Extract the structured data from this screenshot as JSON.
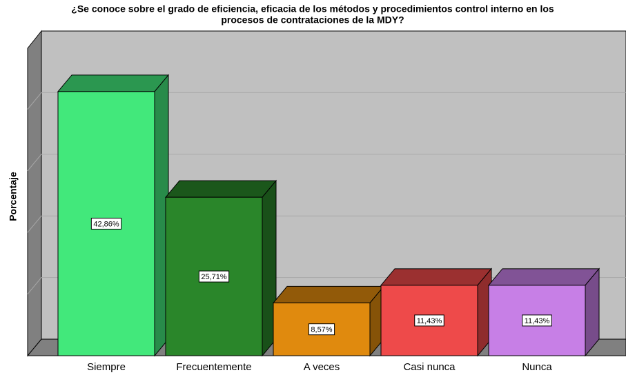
{
  "chart_data": {
    "type": "bar3d",
    "title": [
      "¿Se conoce sobre el grado de eficiencia, eficacia de los métodos y procedimientos control interno en los",
      "procesos de contrataciones de la MDY?"
    ],
    "y_label": "Porcentaje",
    "categories": [
      "Siempre",
      "Frecuentemente",
      "A veces",
      "Casi nunca",
      "Nunca"
    ],
    "values": [
      42.86,
      25.71,
      8.57,
      11.43,
      11.43
    ],
    "value_labels": [
      "42,86%",
      "25,71%",
      "8,57%",
      "11,43%",
      "11,43%"
    ],
    "colors": [
      "#42e87b",
      "#2a862a",
      "#e08a0e",
      "#ee4a4a",
      "#c77fe6"
    ],
    "ylim": [
      0,
      50
    ],
    "yticks": [
      10,
      20,
      30,
      40
    ],
    "grid": true
  }
}
